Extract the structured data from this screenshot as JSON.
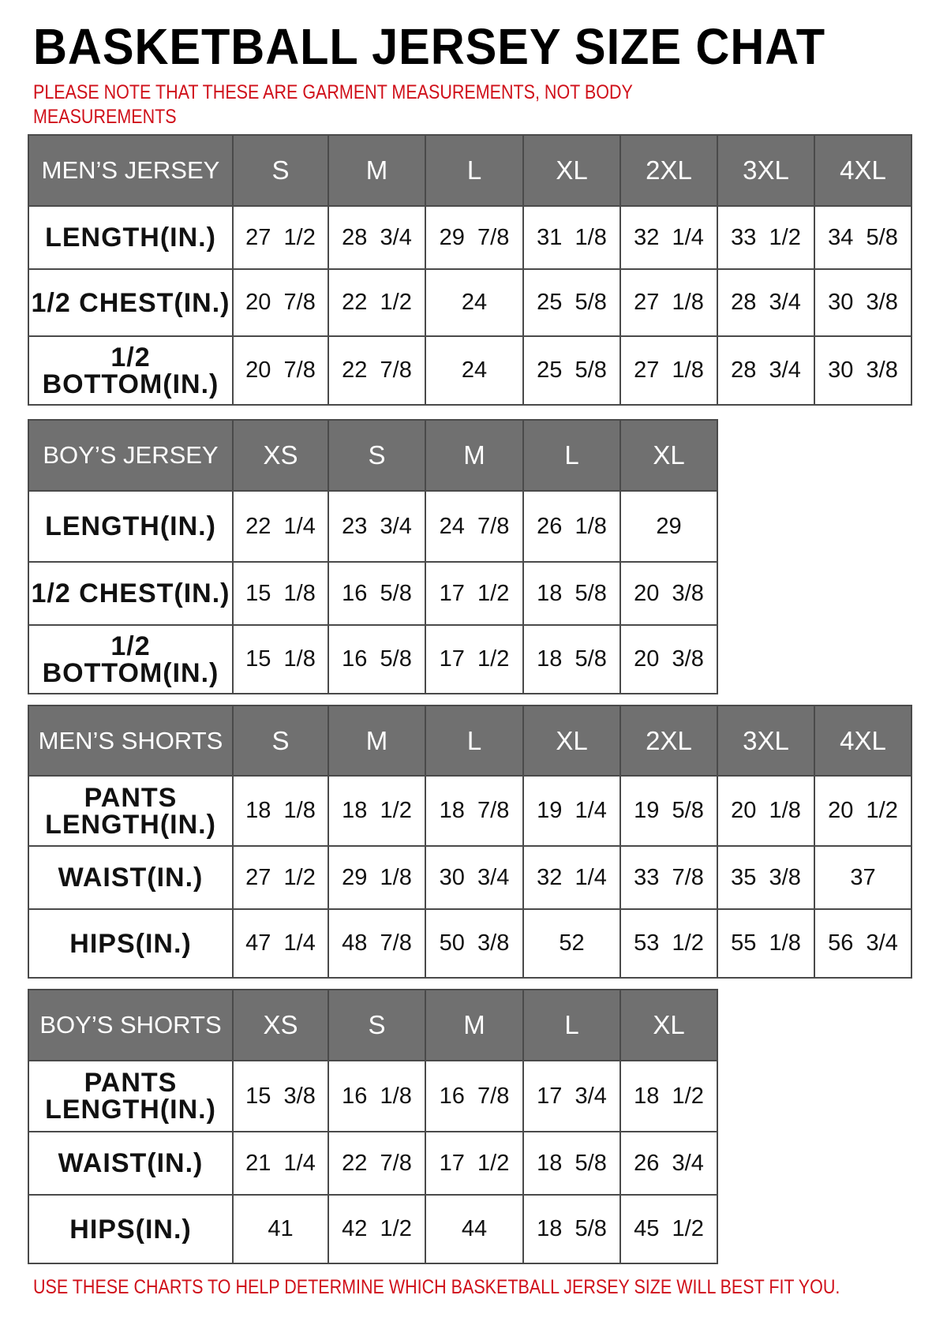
{
  "title": "BASKETBALL JERSEY SIZE CHAT",
  "note": "PLEASE NOTE THAT THESE ARE GARMENT MEASUREMENTS, NOT BODY MEASUREMENTS",
  "footer": "USE THESE CHARTS TO HELP DETERMINE WHICH BASKETBALL JERSEY SIZE WILL BEST FIT YOU.",
  "colors": {
    "header_bg": "#707070",
    "accent_red": "#d0101a"
  },
  "tables": [
    {
      "label": "MEN’S JERSEY",
      "sizes": [
        "S",
        "M",
        "L",
        "XL",
        "2XL",
        "3XL",
        "4XL"
      ],
      "rows": [
        {
          "label": "LENGTH(IN.)",
          "values": [
            "27  1/2",
            "28  3/4",
            "29  7/8",
            "31  1/8",
            "32  1/4",
            "33  1/2",
            "34  5/8"
          ]
        },
        {
          "label": "1/2  CHEST(IN.)",
          "values": [
            "20  7/8",
            "22  1/2",
            "24",
            "25  5/8",
            "27  1/8",
            "28  3/4",
            "30  3/8"
          ]
        },
        {
          "label": "1/2  BOTTOM(IN.)",
          "values": [
            "20  7/8",
            "22  7/8",
            "24",
            "25  5/8",
            "27  1/8",
            "28  3/4",
            "30  3/8"
          ]
        }
      ]
    },
    {
      "label": "BOY’S JERSEY",
      "sizes": [
        "XS",
        "S",
        "M",
        "L",
        "XL"
      ],
      "rows": [
        {
          "label": "LENGTH(IN.)",
          "values": [
            "22  1/4",
            "23  3/4",
            "24  7/8",
            "26  1/8",
            "29"
          ]
        },
        {
          "label": "1/2  CHEST(IN.)",
          "values": [
            "15  1/8",
            "16  5/8",
            "17  1/2",
            "18  5/8",
            "20  3/8"
          ]
        },
        {
          "label": "1/2  BOTTOM(IN.)",
          "values": [
            "15  1/8",
            "16  5/8",
            "17  1/2",
            "18  5/8",
            "20  3/8"
          ]
        }
      ]
    },
    {
      "label": "MEN’S SHORTS",
      "sizes": [
        "S",
        "M",
        "L",
        "XL",
        "2XL",
        "3XL",
        "4XL"
      ],
      "rows": [
        {
          "label": "PANTS LENGTH(IN.)",
          "values": [
            "18  1/8",
            "18  1/2",
            "18  7/8",
            "19  1/4",
            "19  5/8",
            "20  1/8",
            "20  1/2"
          ]
        },
        {
          "label": "WAIST(IN.)",
          "values": [
            "27  1/2",
            "29  1/8",
            "30  3/4",
            "32  1/4",
            "33  7/8",
            "35  3/8",
            "37"
          ]
        },
        {
          "label": "HIPS(IN.)",
          "values": [
            "47  1/4",
            "48  7/8",
            "50  3/8",
            "52",
            "53  1/2",
            "55  1/8",
            "56  3/4"
          ]
        }
      ]
    },
    {
      "label": "BOY’S SHORTS",
      "sizes": [
        "XS",
        "S",
        "M",
        "L",
        "XL"
      ],
      "rows": [
        {
          "label": "PANTS LENGTH(IN.)",
          "values": [
            "15  3/8",
            "16  1/8",
            "16  7/8",
            "17  3/4",
            "18  1/2"
          ]
        },
        {
          "label": "WAIST(IN.)",
          "values": [
            "21  1/4",
            "22  7/8",
            "17  1/2",
            "18  5/8",
            "26  3/4"
          ]
        },
        {
          "label": "HIPS(IN.)",
          "values": [
            "41",
            "42  1/2",
            "44",
            "18  5/8",
            "45  1/2"
          ]
        }
      ]
    }
  ]
}
